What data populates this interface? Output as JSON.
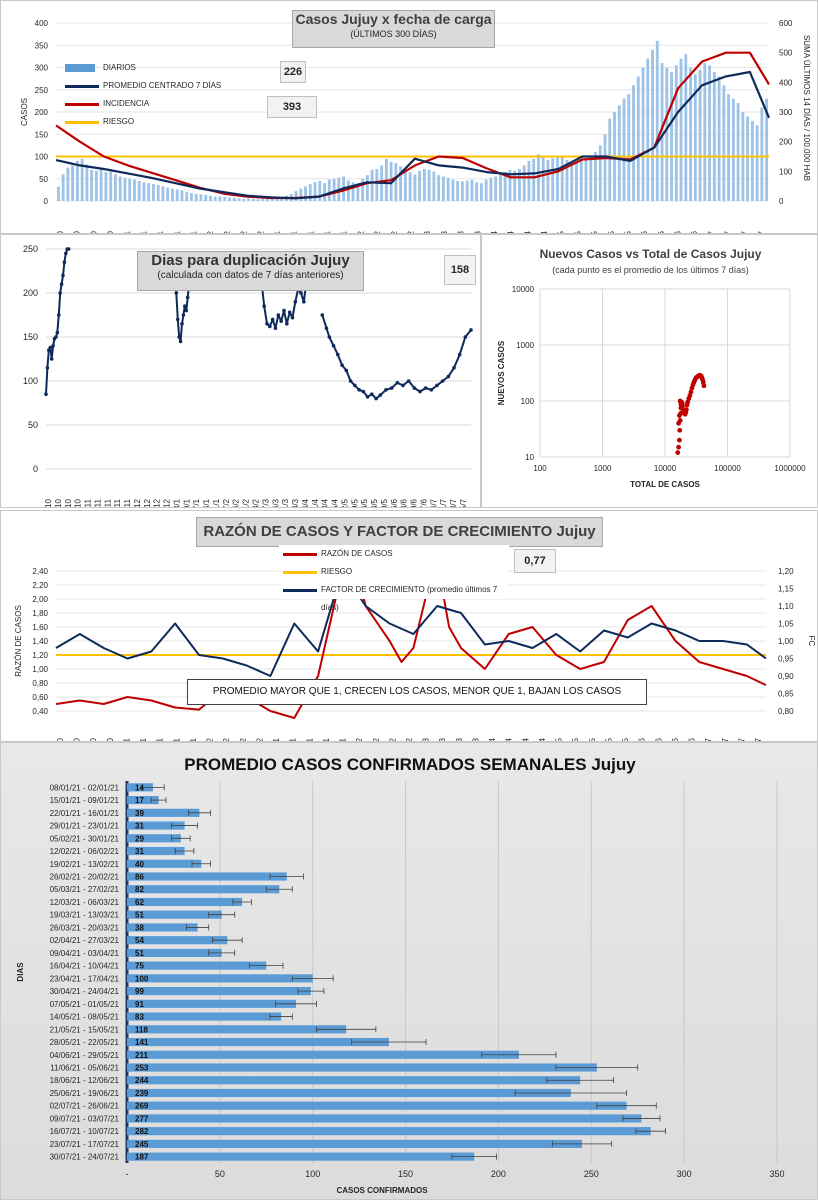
{
  "chart_data": [
    {
      "type": "bar",
      "title": "Casos Jujuy x fecha de carga",
      "subtitle": "(ÚLTIMOS 300 DÍAS)",
      "ylabel": "CASOS",
      "ylabel_right": "SUMA ÚLTIMOS 14 DÍAS / 100.000 HAB",
      "ylim": [
        0,
        400
      ],
      "ylim_right": [
        0,
        600
      ],
      "yticks": [
        "0",
        "50",
        "100",
        "150",
        "200",
        "250",
        "300",
        "350",
        "400"
      ],
      "yticks_right": [
        "0",
        "100",
        "200",
        "300",
        "400",
        "500",
        "600"
      ],
      "xticks": [
        "4/10",
        "11/10",
        "18/10",
        "25/10",
        "1/11",
        "8/11",
        "15/11",
        "22/11",
        "29/11",
        "6/12",
        "13/12",
        "20/12",
        "27/12",
        "3/1",
        "10/1",
        "17/1",
        "24/1",
        "31/1",
        "7/2",
        "14/2",
        "21/2",
        "28/2",
        "7/3",
        "14/3",
        "21/3",
        "28/3",
        "4/4",
        "11/4",
        "18/4",
        "25/4",
        "2/5",
        "9/5",
        "16/5",
        "23/5",
        "30/5",
        "6/6",
        "13/6",
        "20/6",
        "27/6",
        "4/7",
        "11/7",
        "18/7",
        "25/7"
      ],
      "legend": [
        "DIARIOS",
        "PROMEDIO CENTRADO 7 DÍAS",
        "INCIDENCIA",
        "RIESGO"
      ],
      "riesgo": 100,
      "value_boxes": [
        "226",
        "393"
      ],
      "series": [
        {
          "name": "PROMEDIO CENTRADO 7 DÍAS",
          "x": [
            0,
            10,
            20,
            30,
            40,
            50,
            60,
            70,
            80,
            90,
            100,
            110,
            120,
            130,
            140,
            150,
            160,
            170,
            180,
            190,
            200,
            210,
            220,
            230,
            240,
            250,
            260,
            270,
            280,
            290,
            298
          ],
          "values": [
            92,
            80,
            72,
            62,
            52,
            40,
            28,
            20,
            12,
            8,
            6,
            10,
            28,
            42,
            40,
            95,
            80,
            75,
            65,
            60,
            62,
            72,
            100,
            100,
            90,
            120,
            200,
            260,
            280,
            290,
            187
          ]
        },
        {
          "name": "INCIDENCIA",
          "x": [
            0,
            10,
            20,
            30,
            40,
            50,
            60,
            70,
            80,
            90,
            100,
            110,
            120,
            130,
            140,
            150,
            160,
            170,
            180,
            190,
            200,
            210,
            220,
            230,
            240,
            250,
            260,
            270,
            280,
            290,
            298
          ],
          "values": [
            255,
            200,
            150,
            120,
            95,
            70,
            45,
            25,
            15,
            10,
            10,
            15,
            35,
            60,
            70,
            120,
            150,
            145,
            110,
            80,
            80,
            100,
            140,
            145,
            140,
            180,
            380,
            470,
            500,
            500,
            393
          ]
        }
      ],
      "bars": [
        32,
        60,
        75,
        80,
        90,
        95,
        82,
        70,
        68,
        72,
        65,
        66,
        60,
        55,
        52,
        50,
        48,
        45,
        42,
        40,
        38,
        36,
        33,
        30,
        28,
        26,
        24,
        20,
        18,
        16,
        15,
        14,
        12,
        10,
        10,
        9,
        8,
        7,
        6,
        5,
        6,
        5,
        4,
        5,
        6,
        5,
        7,
        8,
        12,
        16,
        22,
        28,
        33,
        38,
        42,
        45,
        40,
        48,
        50,
        52,
        55,
        46,
        42,
        40,
        50,
        58,
        70,
        72,
        80,
        95,
        88,
        85,
        78,
        70,
        65,
        60,
        68,
        72,
        70,
        66,
        58,
        55,
        52,
        48,
        45,
        44,
        46,
        48,
        42,
        40,
        48,
        52,
        55,
        60,
        65,
        70,
        68,
        72,
        80,
        90,
        95,
        105,
        98,
        92,
        96,
        100,
        98,
        92,
        88,
        85,
        90,
        95,
        100,
        110,
        125,
        150,
        185,
        200,
        215,
        230,
        240,
        260,
        280,
        300,
        320,
        340,
        360,
        310,
        300,
        290,
        305,
        320,
        330,
        300,
        285,
        295,
        310,
        305,
        290,
        280,
        260,
        240,
        230,
        220,
        200,
        190,
        180,
        170,
        210,
        230
      ]
    },
    {
      "type": "line",
      "title": "Dias para duplicación Jujuy",
      "subtitle": "(calculada con datos de 7 días anteriores)",
      "value_box": "158",
      "ylim": [
        0,
        250
      ],
      "yticks": [
        "0",
        "50",
        "100",
        "150",
        "200",
        "250"
      ],
      "xticks": [
        "4/10",
        "11/10",
        "18/10",
        "25/10",
        "1/11",
        "8/11",
        "15/11",
        "22/11",
        "29/11",
        "6/12",
        "13/12",
        "20/12",
        "27/12",
        "3/1",
        "10/1",
        "17/1",
        "24/1",
        "31/1",
        "7/2",
        "14/2",
        "21/2",
        "28/2",
        "7/3",
        "14/3",
        "21/3",
        "28/3",
        "4/4",
        "11/4",
        "18/4",
        "25/4",
        "2/5",
        "9/5",
        "16/5",
        "23/5",
        "30/5",
        "6/6",
        "13/6",
        "20/6",
        "27/6",
        "4/7",
        "11/7",
        "18/7",
        "25/7"
      ],
      "series": [
        {
          "name": "",
          "x": [
            0,
            1,
            2,
            3,
            4,
            5,
            6,
            7,
            8,
            9,
            10,
            11,
            12,
            13,
            14,
            15,
            16
          ],
          "values": [
            85,
            115,
            135,
            138,
            125,
            140,
            148,
            150,
            155,
            175,
            200,
            210,
            220,
            235,
            245,
            252,
            262
          ]
        },
        {
          "name": "",
          "x": [
            91,
            92,
            93,
            94,
            95,
            96,
            97,
            98,
            99,
            100,
            101,
            102
          ],
          "values": [
            240,
            200,
            170,
            150,
            145,
            165,
            175,
            185,
            180,
            195,
            210,
            240
          ]
        },
        {
          "name": "",
          "x": [
            150,
            152,
            154,
            156,
            158,
            160,
            162,
            164,
            166,
            168,
            170,
            172,
            174,
            176,
            178,
            180,
            182,
            184,
            186,
            188,
            190
          ],
          "values": [
            240,
            215,
            185,
            165,
            162,
            170,
            160,
            175,
            168,
            180,
            165,
            178,
            172,
            190,
            205,
            200,
            190,
            215,
            205,
            225,
            210
          ]
        },
        {
          "name": "",
          "x": [
            195,
            198,
            200,
            203,
            206,
            209,
            212,
            215,
            218,
            221,
            224,
            227,
            230,
            233,
            236,
            240,
            244,
            248,
            252,
            256,
            260,
            264,
            268,
            272,
            276,
            280,
            284,
            288,
            292,
            296,
            300
          ],
          "values": [
            175,
            160,
            150,
            140,
            130,
            118,
            112,
            100,
            95,
            90,
            88,
            82,
            85,
            80,
            84,
            90,
            92,
            98,
            95,
            100,
            92,
            88,
            92,
            90,
            95,
            100,
            105,
            115,
            130,
            150,
            158
          ]
        }
      ]
    },
    {
      "type": "scatter",
      "title": "Nuevos Casos vs Total de Casos Jujuy",
      "subtitle": "(cada punto es el promedio de los últimos 7 días)",
      "xlabel": "TOTAL DE CASOS",
      "ylabel": "NUEVOS CASOS",
      "log_scale": true,
      "xticks": [
        "100",
        "1000",
        "10000",
        "100000",
        "1000000"
      ],
      "yticks": [
        "10",
        "100",
        "1000",
        "10000"
      ],
      "points": [
        [
          16000,
          12
        ],
        [
          16500,
          15
        ],
        [
          17000,
          20
        ],
        [
          17200,
          30
        ],
        [
          17500,
          45
        ],
        [
          17800,
          60
        ],
        [
          18000,
          75
        ],
        [
          18200,
          85
        ],
        [
          18500,
          95
        ],
        [
          18800,
          90
        ],
        [
          19000,
          80
        ],
        [
          19500,
          70
        ],
        [
          20000,
          65
        ],
        [
          20500,
          60
        ],
        [
          21000,
          58
        ],
        [
          21500,
          62
        ],
        [
          22000,
          70
        ],
        [
          22500,
          85
        ],
        [
          23000,
          95
        ],
        [
          24000,
          110
        ],
        [
          25000,
          125
        ],
        [
          26000,
          145
        ],
        [
          27000,
          170
        ],
        [
          28000,
          195
        ],
        [
          29000,
          215
        ],
        [
          30000,
          235
        ],
        [
          31000,
          255
        ],
        [
          32000,
          265
        ],
        [
          33000,
          270
        ],
        [
          34000,
          278
        ],
        [
          35000,
          285
        ],
        [
          36000,
          288
        ],
        [
          37000,
          282
        ],
        [
          38000,
          278
        ],
        [
          39000,
          260
        ],
        [
          40000,
          240
        ],
        [
          41000,
          215
        ],
        [
          42000,
          187
        ],
        [
          17000,
          55
        ],
        [
          16500,
          40
        ],
        [
          17500,
          100
        ],
        [
          18000,
          88
        ]
      ]
    },
    {
      "type": "line",
      "title": "RAZÓN DE CASOS Y FACTOR DE CRECIMIENTO Jujuy",
      "ylabel": "RAZÓN DE CASOS",
      "ylabel_right": "FC",
      "value_box": "0,77",
      "ylim": [
        0.4,
        2.4
      ],
      "ylim_right": [
        0.8,
        1.2
      ],
      "yticks": [
        "0,40",
        "0,60",
        "0,80",
        "1,00",
        "1,20",
        "1,40",
        "1,60",
        "1,80",
        "2,00",
        "2,20",
        "2,40"
      ],
      "yticks_right": [
        "0,80",
        "0,85",
        "0,90",
        "0,95",
        "1,00",
        "1,05",
        "1,10",
        "1,15",
        "1,20"
      ],
      "xticks": [
        "4/10",
        "11/10",
        "18/10",
        "25/10",
        "1/11",
        "8/11",
        "15/11",
        "22/11",
        "29/11",
        "6/12",
        "13/12",
        "20/12",
        "27/12",
        "3/1",
        "10/1",
        "17/1",
        "24/1",
        "31/1",
        "7/2",
        "14/2",
        "21/2",
        "28/2",
        "7/3",
        "14/3",
        "21/3",
        "28/3",
        "4/4",
        "11/4",
        "18/4",
        "25/4",
        "2/5",
        "9/5",
        "16/5",
        "23/5",
        "30/5",
        "6/6",
        "13/6",
        "20/6",
        "27/6",
        "4/7",
        "11/7",
        "18/7",
        "25/7"
      ],
      "legend": [
        "RAZÓN DE CASOS",
        "RIESGO",
        "FACTOR DE CRECIMIENTO (promedio últimos 7 días)"
      ],
      "riesgo": 1.2,
      "note": "PROMEDIO MAYOR QUE 1, CRECEN LOS CASOS, MENOR QUE 1, BAJAN LOS CASOS",
      "series": [
        {
          "name": "RAZÓN DE CASOS",
          "x": [
            0,
            10,
            20,
            30,
            40,
            50,
            60,
            70,
            80,
            90,
            100,
            110,
            120,
            125,
            130,
            140,
            145,
            150,
            155,
            160,
            165,
            170,
            180,
            190,
            200,
            210,
            220,
            230,
            240,
            250,
            260,
            270,
            280,
            290,
            298
          ],
          "values": [
            0.5,
            0.55,
            0.5,
            0.6,
            0.55,
            0.45,
            0.42,
            0.7,
            0.6,
            0.4,
            0.3,
            0.9,
            2.4,
            2.8,
            1.9,
            1.4,
            1.1,
            1.3,
            2.0,
            2.8,
            1.6,
            1.3,
            1.0,
            1.5,
            1.6,
            1.2,
            1.0,
            1.1,
            1.7,
            1.9,
            1.4,
            1.1,
            1.0,
            0.9,
            0.77
          ]
        },
        {
          "name": "FACTOR DE CRECIMIENTO (promedio últimos 7 días)",
          "x": [
            0,
            10,
            20,
            30,
            40,
            50,
            60,
            70,
            80,
            90,
            100,
            110,
            120,
            130,
            140,
            150,
            160,
            170,
            180,
            190,
            200,
            210,
            220,
            230,
            240,
            250,
            260,
            270,
            280,
            290,
            298
          ],
          "values": [
            0.98,
            1.02,
            0.98,
            0.95,
            0.97,
            1.05,
            0.96,
            0.95,
            0.93,
            0.9,
            1.05,
            0.97,
            1.2,
            1.1,
            1.05,
            1.02,
            1.1,
            1.08,
            0.99,
            1.0,
            0.98,
            1.02,
            0.97,
            1.03,
            1.01,
            1.05,
            1.03,
            1.0,
            1.0,
            0.99,
            0.95
          ]
        }
      ]
    },
    {
      "type": "bar",
      "orientation": "horizontal",
      "title": "PROMEDIO CASOS CONFIRMADOS SEMANALES Jujuy",
      "xlabel": "CASOS CONFIRMADOS",
      "ylabel": "DIAS",
      "xlim": [
        0,
        350
      ],
      "xticks": [
        "-",
        "50",
        "100",
        "150",
        "200",
        "250",
        "300",
        "350"
      ],
      "categories": [
        "08/01/21 - 02/01/21",
        "15/01/21 - 09/01/21",
        "22/01/21 - 16/01/21",
        "29/01/21 - 23/01/21",
        "05/02/21 - 30/01/21",
        "12/02/21 - 06/02/21",
        "19/02/21 - 13/02/21",
        "26/02/21 - 20/02/21",
        "05/03/21 - 27/02/21",
        "12/03/21 - 06/03/21",
        "19/03/21 - 13/03/21",
        "26/03/21 - 20/03/21",
        "02/04/21 - 27/03/21",
        "09/04/21 - 03/04/21",
        "16/04/21 - 10/04/21",
        "23/04/21 - 17/04/21",
        "30/04/21 - 24/04/21",
        "07/05/21 - 01/05/21",
        "14/05/21 - 08/05/21",
        "21/05/21 - 15/05/21",
        "28/05/21 - 22/05/21",
        "04/06/21 - 29/05/21",
        "11/06/21 - 05/06/21",
        "18/06/21 - 12/06/21",
        "25/06/21 - 19/06/21",
        "02/07/21 - 26/06/21",
        "09/07/21 - 03/07/21",
        "16/07/21 - 10/07/21",
        "23/07/21 - 17/07/21",
        "30/07/21 - 24/07/21"
      ],
      "values": [
        14,
        17,
        39,
        31,
        29,
        31,
        40,
        86,
        82,
        62,
        51,
        38,
        54,
        51,
        75,
        100,
        99,
        91,
        83,
        118,
        141,
        211,
        253,
        244,
        239,
        269,
        277,
        282,
        245,
        187
      ],
      "labels": [
        "14",
        "17",
        "39",
        "31",
        "29",
        "31",
        "40",
        "86",
        "82",
        "62",
        "51",
        "38",
        "54",
        "51",
        "75",
        "100",
        "99",
        "91",
        "83",
        "118",
        "141",
        "211",
        "253",
        "244",
        "239",
        "269",
        "277",
        "282",
        "245",
        "187"
      ],
      "errors": [
        6,
        4,
        6,
        7,
        5,
        5,
        5,
        9,
        7,
        5,
        7,
        6,
        8,
        7,
        9,
        11,
        7,
        11,
        6,
        16,
        20,
        20,
        22,
        18,
        30,
        16,
        10,
        8,
        16,
        12
      ]
    }
  ]
}
